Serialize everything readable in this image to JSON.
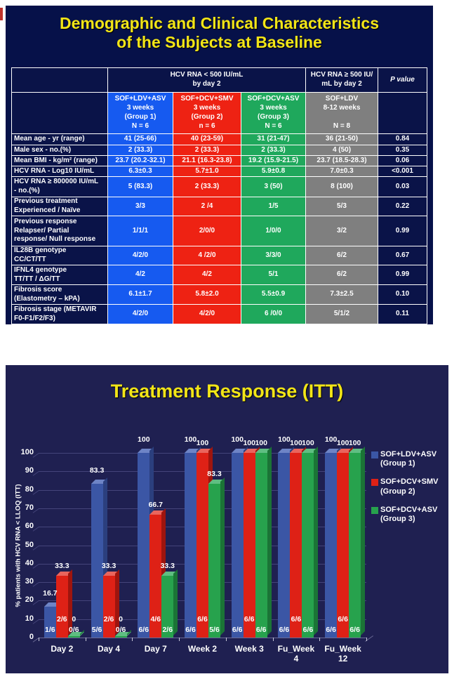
{
  "colors": {
    "page_bg": "#FFFFFF",
    "slide1_bg": "#061149",
    "slide2_bg": "#1F2051",
    "title_yellow": "#F2E517",
    "table_navy": "#0A1348",
    "table_border": "#FFFFFF",
    "gridline": "#44447A",
    "axis_line": "#6A6A96",
    "edge_mark": "#C0342C"
  },
  "slide1": {
    "title": "Demographic and Clinical Characteristics\nof the Subjects at Baseline",
    "table": {
      "top_headers": [
        "HCV RNA < 500 IU/mL\nby day 2",
        "HCV RNA ≥ 500 IU/\nmL by day 2",
        "P value"
      ],
      "groups": [
        {
          "name": "SOF+LDV+ASV",
          "duration": "3 weeks",
          "group": "(Group 1)",
          "n": "N = 6",
          "color": "#165AF0"
        },
        {
          "name": "SOF+DCV+SMV",
          "duration": "3 weeks",
          "group": "(Group 2)",
          "n": "n = 6",
          "color": "#EE2213"
        },
        {
          "name": "SOF+DCV+ASV",
          "duration": "3 weeks",
          "group": "(Group 3)",
          "n": "N = 6",
          "color": "#1FA85C"
        },
        {
          "name": "SOF+LDV",
          "duration": "8-12 weeks",
          "group": "",
          "n": "N = 8",
          "color": "#7F7F7F"
        }
      ],
      "rows": [
        {
          "label": "Mean age - yr (range)",
          "values": [
            "41 (25-66)",
            "40 (23-59)",
            "31 (21-47)",
            "36 (21-50)",
            "0.84"
          ]
        },
        {
          "label": "Male sex - no.(%)",
          "values": [
            "2 (33.3)",
            "2 (33.3)",
            "2 (33.3)",
            "4 (50)",
            "0.35"
          ]
        },
        {
          "label": "Mean BMI - kg/m² (range)",
          "values": [
            "23.7 (20.2-32.1)",
            "21.1 (16.3-23.8)",
            "19.2 (15.9-21.5)",
            "23.7 (18.5-28.3)",
            "0.06"
          ]
        },
        {
          "label": "HCV RNA - Log10 IU/mL",
          "values": [
            "6.3±0.3",
            "5.7±1.0",
            "5.9±0.8",
            "7.0±0.3",
            "<0.001"
          ]
        },
        {
          "label": "HCV RNA ≥ 800000 IU/mL\n- no.(%)",
          "values": [
            "5 (83.3)",
            "2 (33.3)",
            "3 (50)",
            "8 (100)",
            "0.03"
          ]
        },
        {
          "label": "Previous treatment\nExperienced / Naïve",
          "values": [
            "3/3",
            "2 /4",
            "1/5",
            "5/3",
            "0.22"
          ]
        },
        {
          "label": "Previous response\nRelapser/ Partial\nresponse/ Null response",
          "values": [
            "1/1/1",
            "2/0/0",
            "1/0/0",
            "3/2",
            "0.99"
          ]
        },
        {
          "label": "IL28B genotype\nCC/CT/TT",
          "values": [
            "4/2/0",
            "4 /2/0",
            "3/3/0",
            "6/2",
            "0.67"
          ]
        },
        {
          "label": "IFNL4 genotype\nTT/TT / ΔG/TT",
          "values": [
            "4/2",
            "4/2",
            "5/1",
            "6/2",
            "0.99"
          ]
        },
        {
          "label": "Fibrosis score\n(Elastometry – kPA)",
          "values": [
            "6.1±1.7",
            "5.8±2.0",
            "5.5±0.9",
            "7.3±2.5",
            "0.10"
          ]
        },
        {
          "label": "Fibrosis stage (METAVIR\nF0-F1/F2/F3)",
          "values": [
            "4/2/0",
            "4/2/0",
            "6 /0/0",
            "5/1/2",
            "0.11"
          ]
        }
      ]
    }
  },
  "slide2": {
    "title": "Treatment Response (ITT)"
  },
  "chart_data": {
    "type": "bar",
    "title": "Treatment Response (ITT)",
    "xlabel": "",
    "ylabel": "% patients with HCV RNA < LLOQ  (ITT)",
    "ylim": [
      0,
      100
    ],
    "ytick_step": 10,
    "grid": true,
    "legend_position": "right",
    "categories": [
      "Day 2",
      "Day 4",
      "Day 7",
      "Week 2",
      "Week 3",
      "Fu_Week\n4",
      "Fu_Week\n12"
    ],
    "series": [
      {
        "name": "SOF+LDV+ASV\n(Group 1)",
        "color": "#3B56A5",
        "top_color": "#6E84C6",
        "side_color": "#2B3F7E",
        "values": [
          16.7,
          83.3,
          100,
          100,
          100,
          100,
          100
        ],
        "value_labels": [
          "16.7",
          "83.3",
          "100",
          "100",
          "100",
          "100",
          "100"
        ],
        "fraction_labels": [
          "1/6",
          "5/6",
          "6/6",
          "6/6",
          "6/6",
          "6/6",
          "6/6"
        ]
      },
      {
        "name": "SOF+DCV+SMV\n(Group 2)",
        "color": "#DE2116",
        "top_color": "#E9655D",
        "side_color": "#9E150E",
        "values": [
          33.3,
          33.3,
          66.7,
          100,
          100,
          100,
          100
        ],
        "value_labels": [
          "33.3",
          "33.3",
          "66.7",
          "100",
          "100",
          "100",
          "100"
        ],
        "fraction_labels": [
          "2/6",
          "2/6",
          "4/6",
          "6/6",
          "6/6",
          "6/6",
          "6/6"
        ]
      },
      {
        "name": "SOF+DCV+ASV\n(Group 3)",
        "color": "#27A24D",
        "top_color": "#5FBE82",
        "side_color": "#1B7436",
        "values": [
          0,
          0,
          33.3,
          83.3,
          100,
          100,
          100
        ],
        "value_labels": [
          "0",
          "0",
          "33.3",
          "83.3",
          "100",
          "100",
          "100"
        ],
        "fraction_labels": [
          "0/6",
          "0/6",
          "2/6",
          "5/6",
          "6/6",
          "6/6",
          "6/6"
        ]
      }
    ]
  }
}
